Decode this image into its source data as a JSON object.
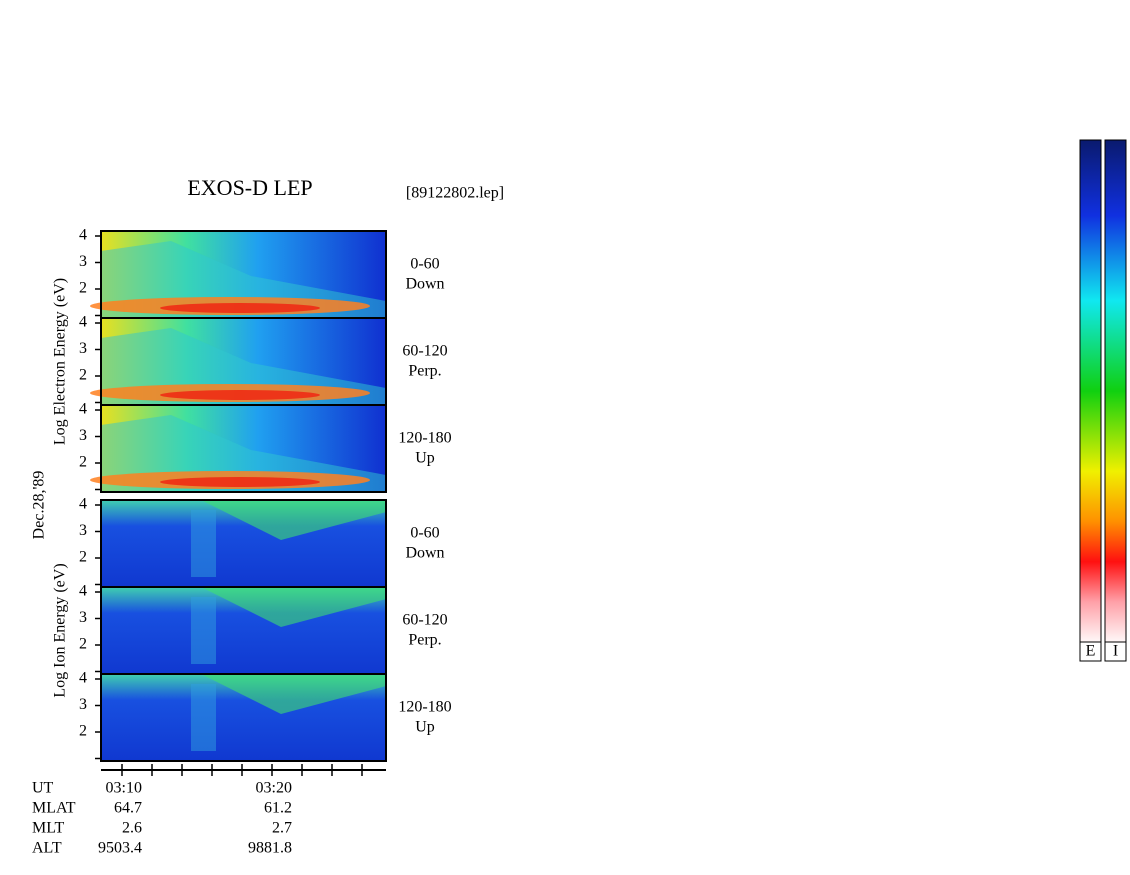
{
  "title": "EXOS-D LEP",
  "file": "[89122802.lep]",
  "date": "Dec.28,'89",
  "groups": [
    {
      "label": "Log Electron Energy (eV)",
      "kind": "electron",
      "panels": [
        {
          "lines": [
            "0-60",
            "Down"
          ],
          "yticks": [
            "4",
            "3",
            "2"
          ]
        },
        {
          "lines": [
            "60-120",
            "Perp."
          ],
          "yticks": [
            "4",
            "3",
            "2"
          ]
        },
        {
          "lines": [
            "120-180",
            "Up"
          ],
          "yticks": [
            "4",
            "3",
            "2"
          ]
        }
      ]
    },
    {
      "label": "Log Ion Energy (eV)",
      "kind": "ion",
      "panels": [
        {
          "lines": [
            "0-60",
            "Down"
          ],
          "yticks": [
            "4",
            "3",
            "2"
          ]
        },
        {
          "lines": [
            "60-120",
            "Perp."
          ],
          "yticks": [
            "4",
            "3",
            "2"
          ]
        },
        {
          "lines": [
            "120-180",
            "Up"
          ],
          "yticks": [
            "4",
            "3",
            "2"
          ]
        }
      ]
    }
  ],
  "footer": [
    [
      "UT",
      "03:10",
      "03:20"
    ],
    [
      "MLAT",
      "64.7",
      "61.2"
    ],
    [
      "MLT",
      "2.6",
      "2.7"
    ],
    [
      "ALT",
      "9503.4",
      "9881.8"
    ]
  ],
  "colorbars": [
    "E",
    "I"
  ]
}
